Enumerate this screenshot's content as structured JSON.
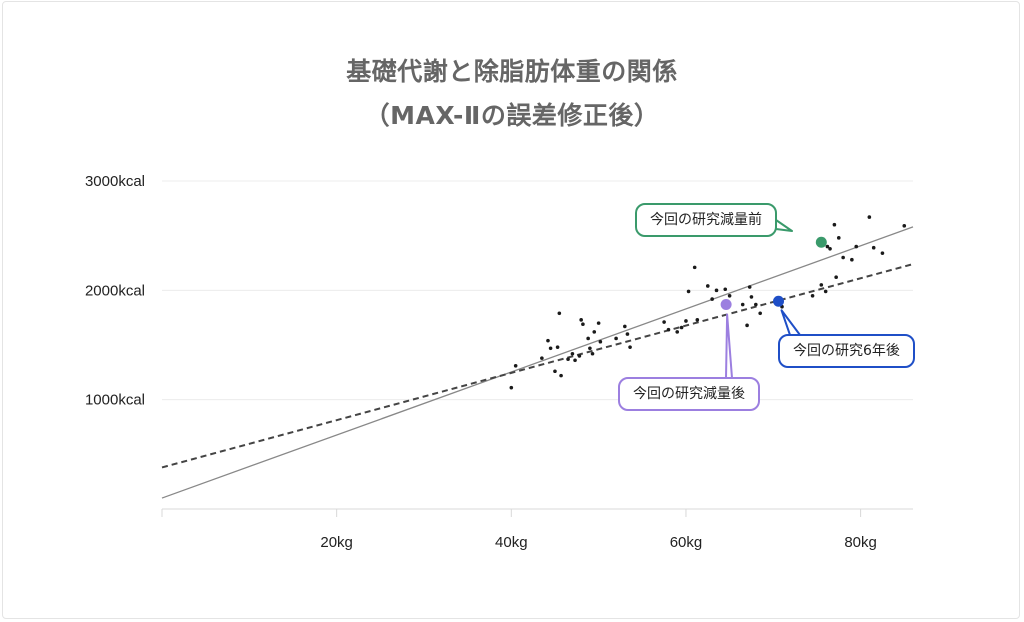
{
  "chart_data": {
    "type": "scatter",
    "title": [
      "基礎代謝と除脂肪体重の関係",
      "（MAX-Ⅱの誤差修正後）"
    ],
    "xlabel": "",
    "ylabel": "",
    "xlim": [
      0,
      86
    ],
    "ylim": [
      0,
      3000
    ],
    "x_ticks": [
      {
        "value": 20,
        "label": "20kg"
      },
      {
        "value": 40,
        "label": "40kg"
      },
      {
        "value": 60,
        "label": "60kg"
      },
      {
        "value": 80,
        "label": "80kg"
      }
    ],
    "y_ticks": [
      {
        "value": 1000,
        "label": "1000kcal"
      },
      {
        "value": 2000,
        "label": "2000kcal"
      },
      {
        "value": 3000,
        "label": "3000kcal"
      }
    ],
    "grid": true,
    "points": [
      {
        "x": 40.0,
        "y": 1110
      },
      {
        "x": 40.5,
        "y": 1310
      },
      {
        "x": 43.5,
        "y": 1380
      },
      {
        "x": 44.2,
        "y": 1540
      },
      {
        "x": 44.5,
        "y": 1470
      },
      {
        "x": 45.0,
        "y": 1260
      },
      {
        "x": 45.3,
        "y": 1480
      },
      {
        "x": 45.5,
        "y": 1790
      },
      {
        "x": 45.7,
        "y": 1220
      },
      {
        "x": 46.5,
        "y": 1370
      },
      {
        "x": 47.0,
        "y": 1420
      },
      {
        "x": 47.3,
        "y": 1360
      },
      {
        "x": 47.8,
        "y": 1400
      },
      {
        "x": 48.0,
        "y": 1730
      },
      {
        "x": 48.2,
        "y": 1690
      },
      {
        "x": 48.8,
        "y": 1560
      },
      {
        "x": 49.0,
        "y": 1470
      },
      {
        "x": 49.3,
        "y": 1420
      },
      {
        "x": 49.5,
        "y": 1620
      },
      {
        "x": 50.0,
        "y": 1700
      },
      {
        "x": 50.2,
        "y": 1530
      },
      {
        "x": 52.0,
        "y": 1560
      },
      {
        "x": 53.0,
        "y": 1670
      },
      {
        "x": 53.3,
        "y": 1600
      },
      {
        "x": 53.6,
        "y": 1480
      },
      {
        "x": 57.5,
        "y": 1710
      },
      {
        "x": 58.0,
        "y": 1640
      },
      {
        "x": 59.0,
        "y": 1620
      },
      {
        "x": 59.5,
        "y": 1660
      },
      {
        "x": 60.0,
        "y": 1720
      },
      {
        "x": 60.3,
        "y": 1990
      },
      {
        "x": 61.0,
        "y": 2210
      },
      {
        "x": 61.3,
        "y": 1730
      },
      {
        "x": 62.5,
        "y": 2040
      },
      {
        "x": 63.0,
        "y": 1920
      },
      {
        "x": 63.5,
        "y": 2000
      },
      {
        "x": 64.5,
        "y": 2010
      },
      {
        "x": 65.0,
        "y": 1950
      },
      {
        "x": 66.5,
        "y": 1870
      },
      {
        "x": 67.0,
        "y": 1680
      },
      {
        "x": 67.3,
        "y": 2030
      },
      {
        "x": 67.5,
        "y": 1940
      },
      {
        "x": 68.0,
        "y": 1870
      },
      {
        "x": 68.5,
        "y": 1790
      },
      {
        "x": 71.0,
        "y": 1850
      },
      {
        "x": 74.5,
        "y": 1950
      },
      {
        "x": 75.5,
        "y": 2050
      },
      {
        "x": 76.0,
        "y": 1990
      },
      {
        "x": 76.2,
        "y": 2400
      },
      {
        "x": 76.5,
        "y": 2380
      },
      {
        "x": 77.0,
        "y": 2600
      },
      {
        "x": 77.2,
        "y": 2120
      },
      {
        "x": 77.5,
        "y": 2480
      },
      {
        "x": 78.0,
        "y": 2300
      },
      {
        "x": 79.0,
        "y": 2280
      },
      {
        "x": 79.5,
        "y": 2400
      },
      {
        "x": 81.0,
        "y": 2670
      },
      {
        "x": 81.5,
        "y": 2390
      },
      {
        "x": 82.5,
        "y": 2340
      },
      {
        "x": 85.0,
        "y": 2590
      }
    ],
    "highlights": [
      {
        "label": "今回の研究減量前",
        "x": 75.5,
        "y": 2440,
        "color": "#3a9a6b"
      },
      {
        "label": "今回の研究減量後",
        "x": 64.6,
        "y": 1870,
        "color": "#9c7fe0"
      },
      {
        "label": "今回の研究6年後",
        "x": 70.6,
        "y": 1900,
        "color": "#1f4fc7"
      }
    ],
    "lines": [
      {
        "style": "solid",
        "x": [
          0,
          86
        ],
        "y": [
          100,
          2580
        ],
        "color": "#888888"
      },
      {
        "style": "dashed",
        "x": [
          0,
          86
        ],
        "y": [
          380,
          2240
        ],
        "color": "#444444"
      }
    ]
  }
}
